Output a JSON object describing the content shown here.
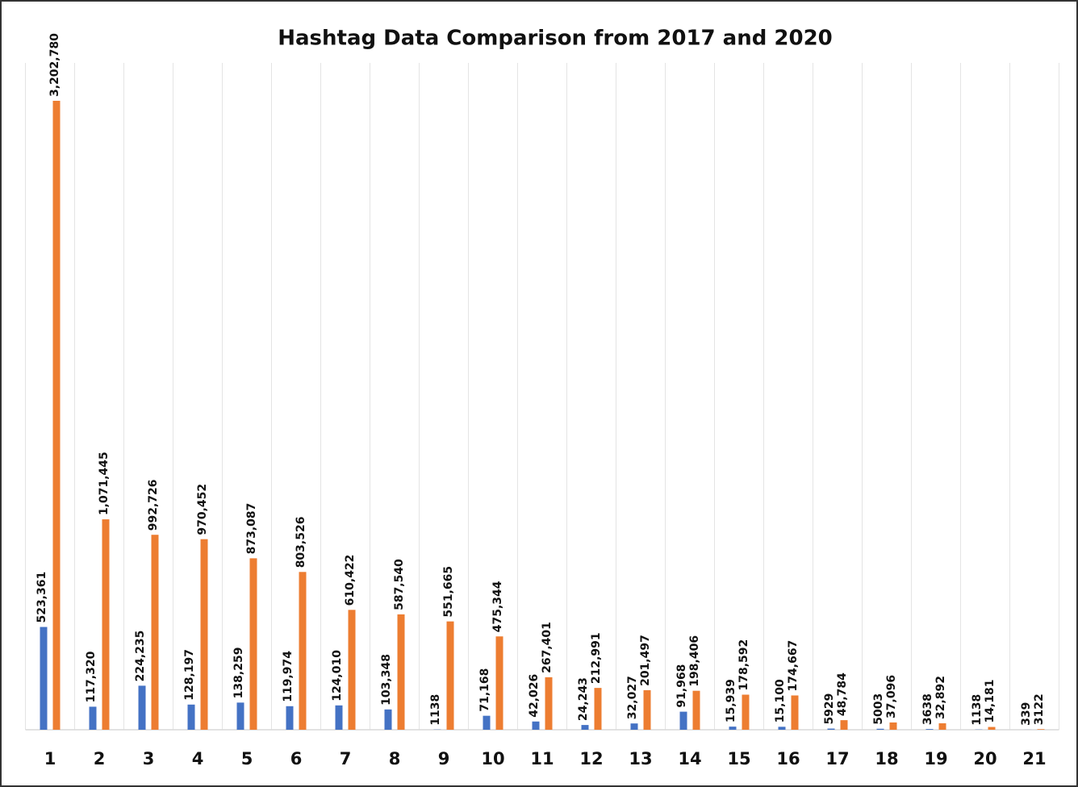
{
  "chart_data": {
    "type": "bar",
    "title": "Hashtag Data Comparison from 2017 and 2020",
    "categories": [
      "1",
      "2",
      "3",
      "4",
      "5",
      "6",
      "7",
      "8",
      "9",
      "10",
      "11",
      "12",
      "13",
      "14",
      "15",
      "16",
      "17",
      "18",
      "19",
      "20",
      "21"
    ],
    "series": [
      {
        "color": "#4472c4",
        "values": [
          523361,
          117320,
          224235,
          128197,
          138259,
          119974,
          124010,
          103348,
          1138,
          71168,
          42026,
          24243,
          32027,
          91968,
          15939,
          15100,
          5929,
          5003,
          3638,
          1138,
          339
        ],
        "value_labels": [
          "523,361",
          "117,320",
          "224,235",
          "128,197",
          "138,259",
          "119,974",
          "124,010",
          "103,348",
          "1138",
          "71,168",
          "42,026",
          "24,243",
          "32,027",
          "91,968",
          "15,939",
          "15,100",
          "5929",
          "5003",
          "3638",
          "1138",
          "339"
        ]
      },
      {
        "color": "#ed7d31",
        "values": [
          3202780,
          1071445,
          992726,
          970452,
          873087,
          803526,
          610422,
          587540,
          551665,
          475344,
          267401,
          212991,
          201497,
          198406,
          178592,
          174667,
          48784,
          37096,
          32892,
          14181,
          3122
        ],
        "value_labels": [
          "3,202,780",
          "1,071,445",
          "992,726",
          "970,452",
          "873,087",
          "803,526",
          "610,422",
          "587,540",
          "551,665",
          "475,344",
          "267,401",
          "212,991",
          "201,497",
          "198,406",
          "178,592",
          "174,667",
          "48,784",
          "37,096",
          "32,892",
          "14,181",
          "3122"
        ]
      }
    ]
  }
}
